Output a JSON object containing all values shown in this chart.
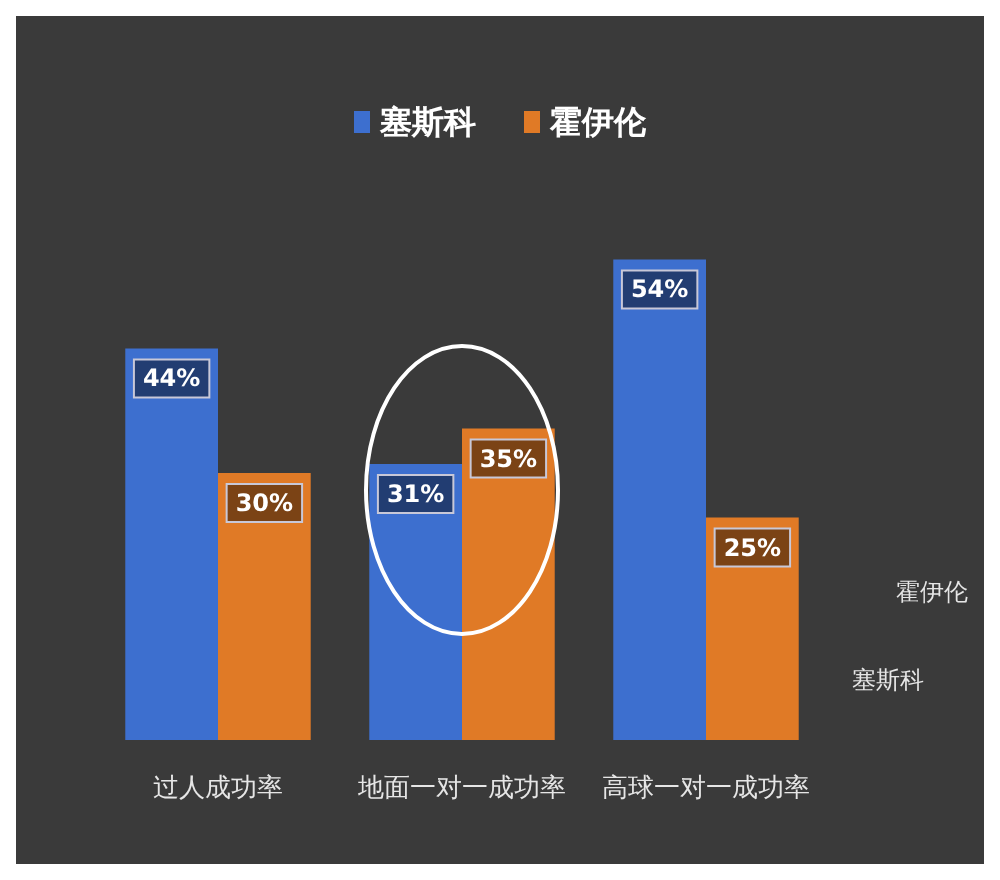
{
  "chart_data": {
    "type": "bar",
    "categories": [
      "过人成功率",
      "地面一对一成功率",
      "高球一对一成功率"
    ],
    "series": [
      {
        "name": "塞斯科",
        "color": "#3d6fcf",
        "values": [
          44,
          31,
          54
        ],
        "value_labels": [
          "44%",
          "31%",
          "54%"
        ]
      },
      {
        "name": "霍伊伦",
        "color": "#e07a26",
        "values": [
          30,
          35,
          25
        ],
        "value_labels": [
          "30%",
          "35%",
          "25%"
        ]
      }
    ],
    "annotations": [
      "霍伊伦",
      "塞斯科"
    ],
    "legend": "top"
  }
}
